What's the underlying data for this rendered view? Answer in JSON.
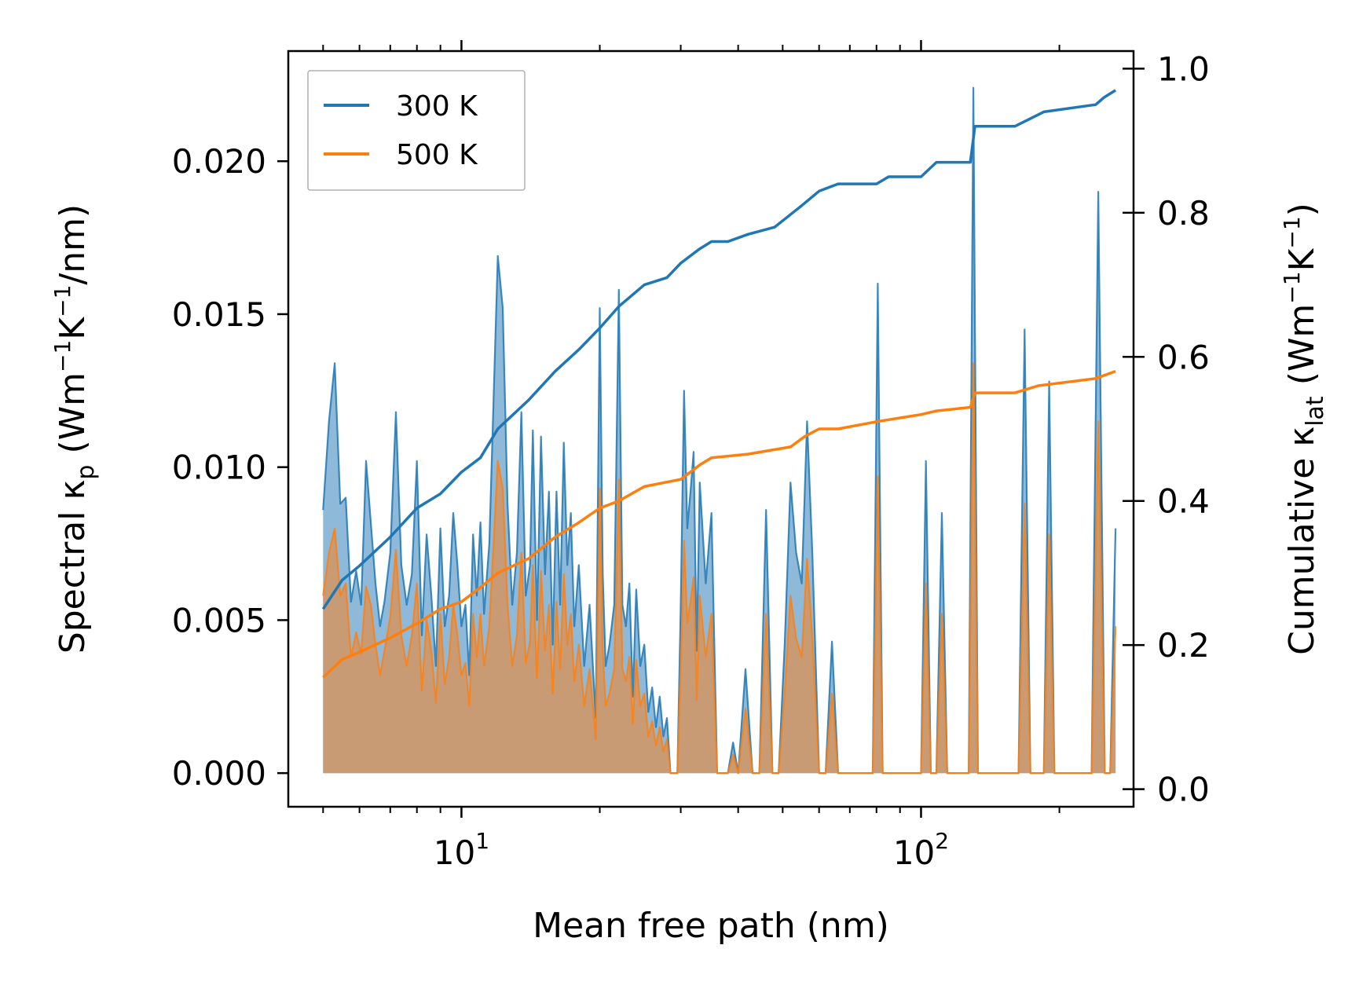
{
  "chart_data": {
    "type": "line",
    "title": "",
    "xlabel": "Mean free path (nm)",
    "ylabel_left": {
      "main": "Spectral κ",
      "sub": "p",
      "unit": "(Wm",
      "exp1": "−1",
      "mid": "K",
      "exp2": "−1",
      "tail": "/nm)"
    },
    "ylabel_right": {
      "main": "Cumulative κ",
      "sub": "lat",
      "unit": "(Wm",
      "exp1": "−1",
      "mid": "K",
      "exp2": "−1",
      "tail": ")"
    },
    "xscale": "log",
    "xlim": [
      4.2,
      290
    ],
    "ylim_left": [
      -0.0011,
      0.0236
    ],
    "ylim_right": [
      -0.0244,
      1.0244
    ],
    "x_ticks": [
      {
        "value": 10,
        "base": "10",
        "exp": "1"
      },
      {
        "value": 100,
        "base": "10",
        "exp": "2"
      }
    ],
    "y_ticks_left": [
      "0.000",
      "0.005",
      "0.010",
      "0.015",
      "0.020"
    ],
    "y_ticks_right": [
      "0.0",
      "0.2",
      "0.4",
      "0.6",
      "0.8",
      "1.0"
    ],
    "legend": {
      "position": "top-left",
      "entries": [
        "300 K",
        "500 K"
      ]
    },
    "colors": {
      "300 K": "#1f77b4",
      "500 K": "#ff7f0e",
      "fill_300": "#8fb9d9",
      "fill_500": "#c99b74"
    },
    "spectral": {
      "300 K": [
        [
          5.0,
          0.0086
        ],
        [
          5.15,
          0.0115
        ],
        [
          5.3,
          0.0134
        ],
        [
          5.45,
          0.0088
        ],
        [
          5.6,
          0.009
        ],
        [
          5.75,
          0.0056
        ],
        [
          5.9,
          0.0066
        ],
        [
          6.05,
          0.0055
        ],
        [
          6.2,
          0.0102
        ],
        [
          6.35,
          0.0082
        ],
        [
          6.5,
          0.0062
        ],
        [
          6.65,
          0.0048
        ],
        [
          6.8,
          0.0056
        ],
        [
          7.0,
          0.0072
        ],
        [
          7.2,
          0.0118
        ],
        [
          7.4,
          0.0068
        ],
        [
          7.6,
          0.0055
        ],
        [
          7.8,
          0.0065
        ],
        [
          8.0,
          0.0102
        ],
        [
          8.2,
          0.0045
        ],
        [
          8.4,
          0.0078
        ],
        [
          8.6,
          0.0058
        ],
        [
          8.8,
          0.0035
        ],
        [
          9.0,
          0.008
        ],
        [
          9.2,
          0.0048
        ],
        [
          9.4,
          0.0058
        ],
        [
          9.6,
          0.0085
        ],
        [
          9.8,
          0.0068
        ],
        [
          10.0,
          0.0048
        ],
        [
          10.2,
          0.0055
        ],
        [
          10.4,
          0.0032
        ],
        [
          10.6,
          0.0078
        ],
        [
          10.8,
          0.0058
        ],
        [
          11.0,
          0.0082
        ],
        [
          11.2,
          0.0052
        ],
        [
          11.5,
          0.0075
        ],
        [
          12.0,
          0.0169
        ],
        [
          12.3,
          0.0152
        ],
        [
          12.6,
          0.0088
        ],
        [
          12.9,
          0.0055
        ],
        [
          13.2,
          0.0072
        ],
        [
          13.5,
          0.0118
        ],
        [
          13.8,
          0.0058
        ],
        [
          14.1,
          0.0068
        ],
        [
          14.3,
          0.0112
        ],
        [
          14.6,
          0.005
        ],
        [
          14.9,
          0.011
        ],
        [
          15.2,
          0.0065
        ],
        [
          15.5,
          0.0092
        ],
        [
          15.8,
          0.0042
        ],
        [
          16.1,
          0.0092
        ],
        [
          16.4,
          0.0055
        ],
        [
          16.7,
          0.0108
        ],
        [
          17.0,
          0.0068
        ],
        [
          17.3,
          0.0085
        ],
        [
          17.6,
          0.0048
        ],
        [
          18.0,
          0.0068
        ],
        [
          18.5,
          0.0035
        ],
        [
          19.0,
          0.0055
        ],
        [
          19.6,
          0.0018
        ],
        [
          20.0,
          0.0152
        ],
        [
          20.3,
          0.0065
        ],
        [
          20.6,
          0.0035
        ],
        [
          21.0,
          0.0042
        ],
        [
          21.5,
          0.0055
        ],
        [
          22.0,
          0.0158
        ],
        [
          22.4,
          0.0055
        ],
        [
          22.8,
          0.0048
        ],
        [
          23.2,
          0.0062
        ],
        [
          23.6,
          0.0025
        ],
        [
          24.0,
          0.006
        ],
        [
          24.5,
          0.0035
        ],
        [
          25.0,
          0.0042
        ],
        [
          25.5,
          0.002
        ],
        [
          26.0,
          0.0028
        ],
        [
          26.5,
          0.0015
        ],
        [
          27.0,
          0.0025
        ],
        [
          27.5,
          0.0012
        ],
        [
          28.0,
          0.0018
        ],
        [
          28.5,
          0.0
        ],
        [
          29.0,
          0.0
        ],
        [
          29.5,
          0.0
        ],
        [
          30.0,
          0.0055
        ],
        [
          30.5,
          0.0125
        ],
        [
          31.0,
          0.008
        ],
        [
          31.5,
          0.0092
        ],
        [
          32.0,
          0.0105
        ],
        [
          32.5,
          0.004
        ],
        [
          33.0,
          0.0095
        ],
        [
          34.0,
          0.0062
        ],
        [
          35.0,
          0.0085
        ],
        [
          36.0,
          0.0
        ],
        [
          38.0,
          0.0
        ],
        [
          39.0,
          0.001
        ],
        [
          40.0,
          0.0
        ],
        [
          41.5,
          0.0034
        ],
        [
          43.0,
          0.0
        ],
        [
          44.5,
          0.0
        ],
        [
          46.0,
          0.0086
        ],
        [
          47.5,
          0.0
        ],
        [
          49.0,
          0.0
        ],
        [
          50.5,
          0.0042
        ],
        [
          52.0,
          0.0095
        ],
        [
          53.5,
          0.0072
        ],
        [
          55.0,
          0.0062
        ],
        [
          56.5,
          0.0115
        ],
        [
          58.0,
          0.0072
        ],
        [
          60.0,
          0.0
        ],
        [
          62.0,
          0.0
        ],
        [
          64.0,
          0.0043
        ],
        [
          66.0,
          0.0
        ],
        [
          78.5,
          0.0
        ],
        [
          80.5,
          0.016
        ],
        [
          82.5,
          0.0
        ],
        [
          100.0,
          0.0
        ],
        [
          102.5,
          0.0102
        ],
        [
          105.0,
          0.0
        ],
        [
          108.0,
          0.0
        ],
        [
          111.0,
          0.0085
        ],
        [
          114.0,
          0.0
        ],
        [
          127.0,
          0.0
        ],
        [
          130.0,
          0.0224
        ],
        [
          133.0,
          0.0
        ],
        [
          163.0,
          0.0
        ],
        [
          168.0,
          0.0145
        ],
        [
          173.0,
          0.0
        ],
        [
          185.0,
          0.0
        ],
        [
          190.0,
          0.0128
        ],
        [
          195.0,
          0.0
        ],
        [
          235.0,
          0.0
        ],
        [
          243.0,
          0.019
        ],
        [
          251.0,
          0.0
        ],
        [
          258.0,
          0.0
        ],
        [
          265.0,
          0.008
        ]
      ],
      "500 K": [
        [
          5.0,
          0.0058
        ],
        [
          5.15,
          0.0072
        ],
        [
          5.3,
          0.008
        ],
        [
          5.45,
          0.0058
        ],
        [
          5.6,
          0.0062
        ],
        [
          5.75,
          0.0038
        ],
        [
          5.9,
          0.0046
        ],
        [
          6.05,
          0.0039
        ],
        [
          6.2,
          0.0061
        ],
        [
          6.35,
          0.0055
        ],
        [
          6.5,
          0.0042
        ],
        [
          6.65,
          0.0032
        ],
        [
          6.8,
          0.004
        ],
        [
          7.0,
          0.0051
        ],
        [
          7.2,
          0.0073
        ],
        [
          7.4,
          0.0045
        ],
        [
          7.6,
          0.0035
        ],
        [
          7.8,
          0.0045
        ],
        [
          8.0,
          0.0062
        ],
        [
          8.2,
          0.0027
        ],
        [
          8.4,
          0.005
        ],
        [
          8.6,
          0.004
        ],
        [
          8.8,
          0.0023
        ],
        [
          9.0,
          0.0052
        ],
        [
          9.2,
          0.0029
        ],
        [
          9.4,
          0.0038
        ],
        [
          9.6,
          0.0055
        ],
        [
          9.8,
          0.0045
        ],
        [
          10.0,
          0.0032
        ],
        [
          10.2,
          0.0036
        ],
        [
          10.4,
          0.0022
        ],
        [
          10.6,
          0.0052
        ],
        [
          10.8,
          0.0038
        ],
        [
          11.0,
          0.0052
        ],
        [
          11.2,
          0.0035
        ],
        [
          11.5,
          0.0048
        ],
        [
          12.0,
          0.0102
        ],
        [
          12.3,
          0.0093
        ],
        [
          12.6,
          0.0055
        ],
        [
          12.9,
          0.0035
        ],
        [
          13.2,
          0.0045
        ],
        [
          13.5,
          0.0072
        ],
        [
          13.8,
          0.0036
        ],
        [
          14.1,
          0.0043
        ],
        [
          14.3,
          0.0068
        ],
        [
          14.6,
          0.0031
        ],
        [
          14.9,
          0.0066
        ],
        [
          15.2,
          0.004
        ],
        [
          15.5,
          0.0055
        ],
        [
          15.8,
          0.0026
        ],
        [
          16.1,
          0.0056
        ],
        [
          16.4,
          0.0034
        ],
        [
          16.7,
          0.0065
        ],
        [
          17.0,
          0.0042
        ],
        [
          17.3,
          0.0052
        ],
        [
          17.6,
          0.003
        ],
        [
          18.0,
          0.0042
        ],
        [
          18.5,
          0.0022
        ],
        [
          19.0,
          0.0034
        ],
        [
          19.6,
          0.0011
        ],
        [
          20.0,
          0.0093
        ],
        [
          20.3,
          0.004
        ],
        [
          20.6,
          0.0022
        ],
        [
          21.0,
          0.0026
        ],
        [
          21.5,
          0.0034
        ],
        [
          22.0,
          0.0096
        ],
        [
          22.4,
          0.0034
        ],
        [
          22.8,
          0.003
        ],
        [
          23.2,
          0.0038
        ],
        [
          23.6,
          0.0016
        ],
        [
          24.0,
          0.0037
        ],
        [
          24.5,
          0.0022
        ],
        [
          25.0,
          0.0026
        ],
        [
          25.5,
          0.0012
        ],
        [
          26.0,
          0.0017
        ],
        [
          26.5,
          0.0009
        ],
        [
          27.0,
          0.0015
        ],
        [
          27.5,
          0.0007
        ],
        [
          28.0,
          0.0011
        ],
        [
          28.5,
          0.0
        ],
        [
          29.0,
          0.0
        ],
        [
          29.5,
          0.0
        ],
        [
          30.0,
          0.0034
        ],
        [
          30.5,
          0.0076
        ],
        [
          31.0,
          0.0049
        ],
        [
          31.5,
          0.0056
        ],
        [
          32.0,
          0.0064
        ],
        [
          32.5,
          0.0024
        ],
        [
          33.0,
          0.0058
        ],
        [
          34.0,
          0.0038
        ],
        [
          35.0,
          0.0052
        ],
        [
          36.0,
          0.0
        ],
        [
          38.0,
          0.0
        ],
        [
          39.0,
          0.0006
        ],
        [
          40.0,
          0.0
        ],
        [
          41.5,
          0.0021
        ],
        [
          43.0,
          0.0
        ],
        [
          44.5,
          0.0
        ],
        [
          46.0,
          0.0052
        ],
        [
          47.5,
          0.0
        ],
        [
          49.0,
          0.0
        ],
        [
          50.5,
          0.0026
        ],
        [
          52.0,
          0.0058
        ],
        [
          53.5,
          0.0044
        ],
        [
          55.0,
          0.0038
        ],
        [
          56.5,
          0.007
        ],
        [
          58.0,
          0.0044
        ],
        [
          60.0,
          0.0
        ],
        [
          62.0,
          0.0
        ],
        [
          64.0,
          0.0026
        ],
        [
          66.0,
          0.0
        ],
        [
          78.5,
          0.0
        ],
        [
          80.5,
          0.0097
        ],
        [
          82.5,
          0.0
        ],
        [
          100.0,
          0.0
        ],
        [
          102.5,
          0.0062
        ],
        [
          105.0,
          0.0
        ],
        [
          108.0,
          0.0
        ],
        [
          111.0,
          0.0052
        ],
        [
          114.0,
          0.0
        ],
        [
          127.0,
          0.0
        ],
        [
          130.0,
          0.0134
        ],
        [
          133.0,
          0.0
        ],
        [
          163.0,
          0.0
        ],
        [
          168.0,
          0.0088
        ],
        [
          173.0,
          0.0
        ],
        [
          185.0,
          0.0
        ],
        [
          190.0,
          0.0078
        ],
        [
          195.0,
          0.0
        ],
        [
          235.0,
          0.0
        ],
        [
          243.0,
          0.0115
        ],
        [
          251.0,
          0.0
        ],
        [
          258.0,
          0.0
        ],
        [
          265.0,
          0.0048
        ]
      ]
    },
    "cumulative": {
      "300 K": [
        [
          5.0,
          0.25
        ],
        [
          5.5,
          0.29
        ],
        [
          6.0,
          0.31
        ],
        [
          7.0,
          0.35
        ],
        [
          8.0,
          0.39
        ],
        [
          9.0,
          0.41
        ],
        [
          10.0,
          0.44
        ],
        [
          11.0,
          0.46
        ],
        [
          12.0,
          0.5
        ],
        [
          14.0,
          0.54
        ],
        [
          16.0,
          0.58
        ],
        [
          18.0,
          0.61
        ],
        [
          20.0,
          0.64
        ],
        [
          22.0,
          0.67
        ],
        [
          25.0,
          0.7
        ],
        [
          28.0,
          0.71
        ],
        [
          30.0,
          0.73
        ],
        [
          33.0,
          0.75
        ],
        [
          35.0,
          0.76
        ],
        [
          38.0,
          0.76
        ],
        [
          42.0,
          0.77
        ],
        [
          48.0,
          0.78
        ],
        [
          55.0,
          0.81
        ],
        [
          60.0,
          0.83
        ],
        [
          66.0,
          0.84
        ],
        [
          80.0,
          0.84
        ],
        [
          85.0,
          0.85
        ],
        [
          100.0,
          0.85
        ],
        [
          108.0,
          0.87
        ],
        [
          128.0,
          0.87
        ],
        [
          131.0,
          0.92
        ],
        [
          160.0,
          0.92
        ],
        [
          185.0,
          0.94
        ],
        [
          240.0,
          0.95
        ],
        [
          250.0,
          0.96
        ],
        [
          265.0,
          0.97
        ]
      ],
      "500 K": [
        [
          5.0,
          0.155
        ],
        [
          5.5,
          0.18
        ],
        [
          6.0,
          0.19
        ],
        [
          7.0,
          0.21
        ],
        [
          8.0,
          0.23
        ],
        [
          9.0,
          0.25
        ],
        [
          10.0,
          0.26
        ],
        [
          11.0,
          0.28
        ],
        [
          12.0,
          0.3
        ],
        [
          14.0,
          0.32
        ],
        [
          16.0,
          0.35
        ],
        [
          18.0,
          0.37
        ],
        [
          20.0,
          0.39
        ],
        [
          22.0,
          0.4
        ],
        [
          25.0,
          0.42
        ],
        [
          30.0,
          0.43
        ],
        [
          33.0,
          0.45
        ],
        [
          35.0,
          0.46
        ],
        [
          42.0,
          0.465
        ],
        [
          52.0,
          0.475
        ],
        [
          56.0,
          0.49
        ],
        [
          60.0,
          0.5
        ],
        [
          66.0,
          0.5
        ],
        [
          80.0,
          0.51
        ],
        [
          100.0,
          0.52
        ],
        [
          108.0,
          0.525
        ],
        [
          128.0,
          0.53
        ],
        [
          131.0,
          0.55
        ],
        [
          160.0,
          0.55
        ],
        [
          180.0,
          0.56
        ],
        [
          240.0,
          0.57
        ],
        [
          265.0,
          0.58
        ]
      ]
    }
  }
}
